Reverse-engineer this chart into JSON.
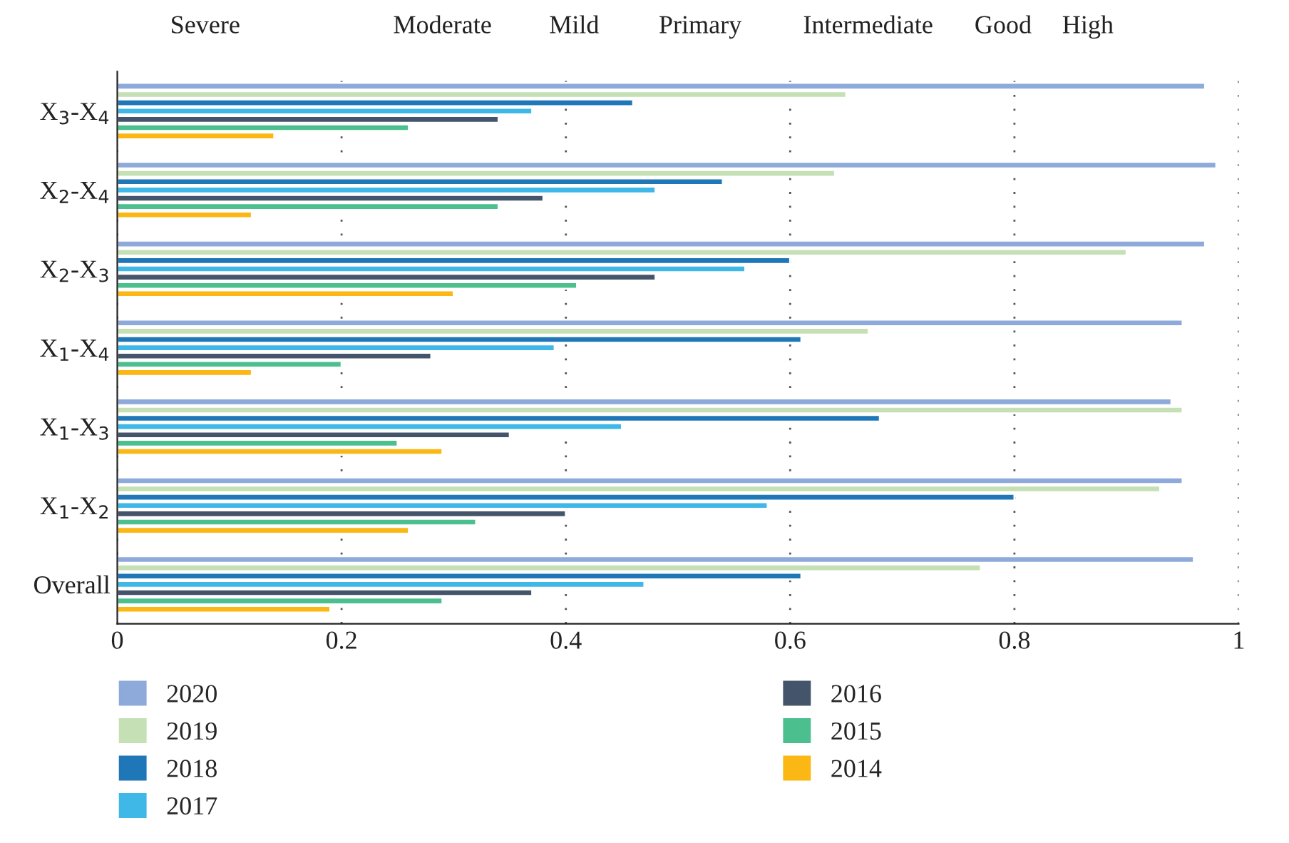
{
  "chart_data": {
    "type": "bar",
    "orientation": "horizontal",
    "categories": [
      "X$_{3}$-X$_{4}$",
      "X$_{2}$-X$_{4}$",
      "X$_{2}$-X$_{3}$",
      "X$_{1}$-X$_{4}$",
      "X$_{1}$-X$_{3}$",
      "X$_{1}$-X$_{2}$",
      "Overall"
    ],
    "series": [
      {
        "name": "2020",
        "color": "#8eaadb",
        "values": [
          0.97,
          0.98,
          0.97,
          0.95,
          0.94,
          0.95,
          0.96
        ]
      },
      {
        "name": "2019",
        "color": "#c5e0b4",
        "values": [
          0.65,
          0.64,
          0.9,
          0.67,
          0.95,
          0.93,
          0.77
        ]
      },
      {
        "name": "2018",
        "color": "#1f77b8",
        "values": [
          0.46,
          0.54,
          0.6,
          0.61,
          0.68,
          0.8,
          0.61
        ]
      },
      {
        "name": "2017",
        "color": "#3fb8e8",
        "values": [
          0.37,
          0.48,
          0.56,
          0.39,
          0.45,
          0.58,
          0.47
        ]
      },
      {
        "name": "2016",
        "color": "#44546a",
        "values": [
          0.34,
          0.38,
          0.48,
          0.28,
          0.35,
          0.4,
          0.37
        ]
      },
      {
        "name": "2015",
        "color": "#4cbf8f",
        "values": [
          0.26,
          0.34,
          0.41,
          0.2,
          0.25,
          0.32,
          0.29
        ]
      },
      {
        "name": "2014",
        "color": "#fbb714",
        "values": [
          0.14,
          0.12,
          0.3,
          0.12,
          0.29,
          0.26,
          0.19
        ]
      }
    ],
    "xlim": [
      0,
      1
    ],
    "xticks": [
      0,
      0.2,
      0.4,
      0.6,
      0.8,
      1
    ],
    "grid": "x",
    "legend": "bottom",
    "annotations": [
      "Severe",
      "Moderate",
      "Mild",
      "Primary",
      "Intermediate",
      "Good",
      "High"
    ]
  }
}
